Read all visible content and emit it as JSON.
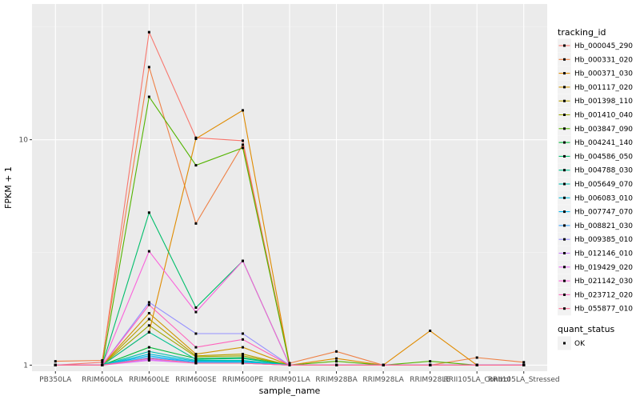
{
  "chart_data": {
    "type": "line",
    "scale_y": "log",
    "xlabel": "sample_name",
    "ylabel": "FPKM + 1",
    "ylim": [
      0.94,
      40
    ],
    "y_ticks": [
      1,
      10
    ],
    "y_tick_labels": [
      "1",
      "10"
    ],
    "categories": [
      "PB350LA",
      "RRIM600LA",
      "RRIM600LE",
      "RRIM600SE",
      "RRIM600PE",
      "RRIM901LA",
      "RRIM928BA",
      "RRIM928LA",
      "RRIM928LE",
      "RRII105LA_Control",
      "RRII105LA_Stressed"
    ],
    "grid": true,
    "legend": {
      "title": "tracking_id",
      "position": "right"
    },
    "legend2": {
      "title": "quant_status",
      "entries": [
        "OK"
      ]
    },
    "series": [
      {
        "name": "Hb_000045_290",
        "color": "#F8766D",
        "values": [
          1.0,
          1.03,
          30.0,
          10.2,
          9.9,
          1.0,
          1.0,
          1.0,
          1.0,
          1.0,
          1.0
        ]
      },
      {
        "name": "Hb_000331_020",
        "color": "#EE8045",
        "values": [
          1.04,
          1.05,
          21.0,
          4.25,
          9.5,
          1.02,
          1.15,
          1.0,
          1.0,
          1.08,
          1.03
        ]
      },
      {
        "name": "Hb_000371_030",
        "color": "#E08B00",
        "values": [
          1.0,
          1.0,
          1.4,
          10.1,
          13.5,
          1.0,
          1.07,
          1.0,
          1.42,
          1.0,
          1.0
        ]
      },
      {
        "name": "Hb_001117_020",
        "color": "#CF9400",
        "values": [
          1.0,
          1.0,
          1.7,
          1.12,
          1.2,
          1.0,
          1.0,
          1.0,
          1.0,
          1.0,
          1.0
        ]
      },
      {
        "name": "Hb_001398_110",
        "color": "#B79F00",
        "values": [
          1.0,
          1.0,
          1.6,
          1.1,
          1.12,
          1.0,
          1.0,
          1.0,
          1.0,
          1.0,
          1.0
        ]
      },
      {
        "name": "Hb_001410_040",
        "color": "#9DA700",
        "values": [
          1.0,
          1.0,
          1.5,
          1.09,
          1.1,
          1.0,
          1.0,
          1.0,
          1.0,
          1.0,
          1.0
        ]
      },
      {
        "name": "Hb_003847_090",
        "color": "#53B400",
        "values": [
          1.0,
          1.0,
          15.5,
          7.7,
          9.2,
          1.0,
          1.04,
          1.0,
          1.04,
          1.0,
          1.0
        ]
      },
      {
        "name": "Hb_004241_140",
        "color": "#00BA38",
        "values": [
          1.0,
          1.0,
          1.2,
          1.07,
          1.08,
          1.0,
          1.0,
          1.0,
          1.0,
          1.0,
          1.0
        ]
      },
      {
        "name": "Hb_004586_050",
        "color": "#00BE6B",
        "values": [
          1.0,
          1.0,
          4.75,
          1.8,
          2.9,
          1.0,
          1.0,
          1.0,
          1.0,
          1.0,
          1.0
        ]
      },
      {
        "name": "Hb_004788_030",
        "color": "#00C08E",
        "values": [
          1.0,
          1.0,
          1.4,
          1.06,
          1.07,
          1.0,
          1.0,
          1.0,
          1.0,
          1.0,
          1.0
        ]
      },
      {
        "name": "Hb_005649_070",
        "color": "#00C0AF",
        "values": [
          1.0,
          1.0,
          1.15,
          1.05,
          1.05,
          1.0,
          1.0,
          1.0,
          1.0,
          1.0,
          1.0
        ]
      },
      {
        "name": "Hb_006083_010",
        "color": "#00BCD8",
        "values": [
          1.0,
          1.0,
          1.12,
          1.04,
          1.04,
          1.0,
          1.0,
          1.0,
          1.0,
          1.0,
          1.0
        ]
      },
      {
        "name": "Hb_007747_070",
        "color": "#00B5EF",
        "values": [
          1.0,
          1.0,
          1.1,
          1.03,
          1.03,
          1.0,
          1.0,
          1.0,
          1.0,
          1.0,
          1.0
        ]
      },
      {
        "name": "Hb_008821_030",
        "color": "#35A2FF",
        "values": [
          1.0,
          1.0,
          1.08,
          1.03,
          1.02,
          1.0,
          1.0,
          1.0,
          1.0,
          1.0,
          1.0
        ]
      },
      {
        "name": "Hb_009385_010",
        "color": "#9590FF",
        "values": [
          1.0,
          1.0,
          1.9,
          1.38,
          1.38,
          1.0,
          1.0,
          1.0,
          1.0,
          1.0,
          1.0
        ]
      },
      {
        "name": "Hb_012146_010",
        "color": "#C77CFF",
        "values": [
          1.0,
          1.0,
          1.06,
          1.02,
          1.02,
          1.0,
          1.0,
          1.0,
          1.0,
          1.0,
          1.0
        ]
      },
      {
        "name": "Hb_019429_020",
        "color": "#E76BF3",
        "values": [
          1.0,
          1.0,
          1.05,
          1.02,
          1.02,
          1.0,
          1.0,
          1.0,
          1.0,
          1.0,
          1.0
        ]
      },
      {
        "name": "Hb_021142_030",
        "color": "#FA62DB",
        "values": [
          1.0,
          1.0,
          3.2,
          1.72,
          2.9,
          1.0,
          1.0,
          1.0,
          1.0,
          1.0,
          1.0
        ]
      },
      {
        "name": "Hb_023712_020",
        "color": "#FF62BC",
        "values": [
          1.0,
          1.0,
          1.85,
          1.2,
          1.3,
          1.0,
          1.0,
          1.0,
          1.0,
          1.0,
          1.0
        ]
      },
      {
        "name": "Hb_055877_010",
        "color": "#FF6C91",
        "values": [
          1.0,
          1.0,
          1.07,
          1.02,
          1.02,
          1.0,
          1.0,
          1.0,
          1.0,
          1.0,
          1.0
        ]
      }
    ]
  }
}
